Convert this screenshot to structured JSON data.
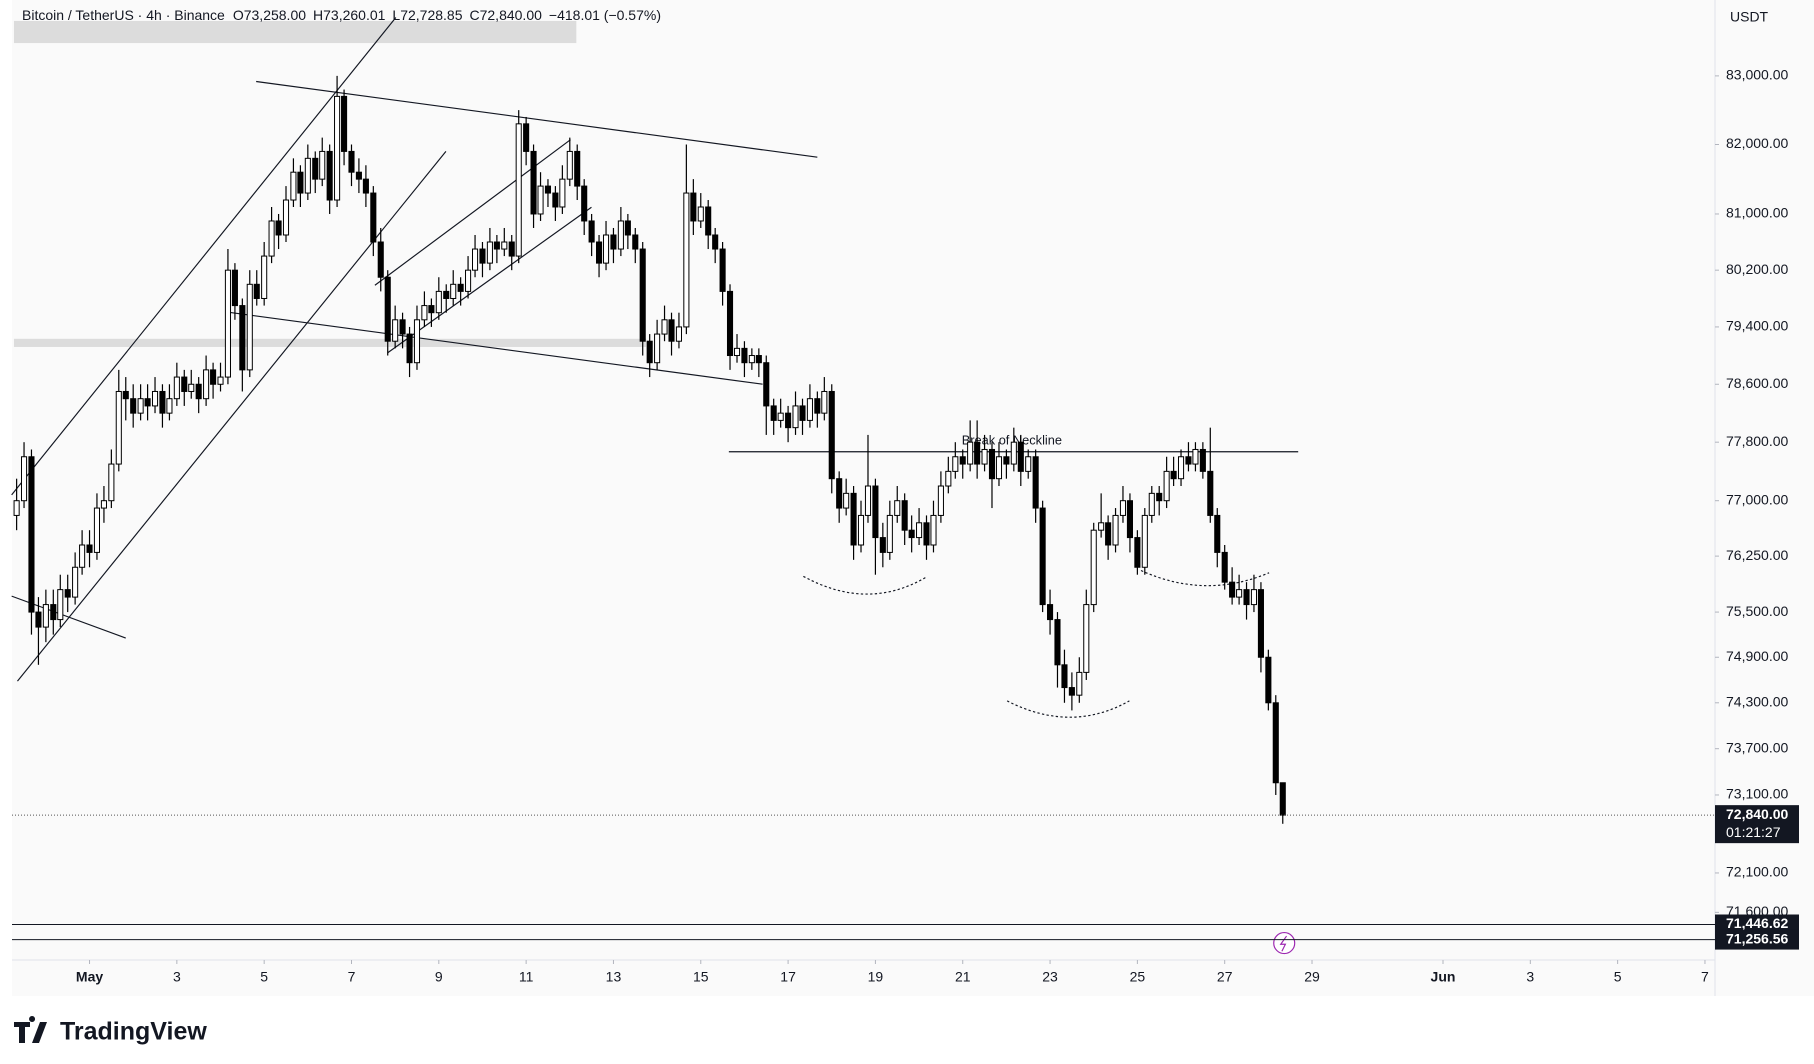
{
  "chart_data": {
    "type": "candlestick",
    "header": [
      "Bitcoin / TetherUS · 4h · Binance",
      "O73,258.00",
      "H73,260.01",
      "L72,728.85",
      "C72,840.00",
      "−418.01 (−0.57%)"
    ],
    "currency": "USDT",
    "log_scale": true,
    "grid": false,
    "up_color": "#ffffff",
    "down_color": "#000000",
    "wick_color": "#000000",
    "ylim": [
      71000,
      84120
    ],
    "yticks": [
      {
        "value": 83000,
        "label": "83,000.00"
      },
      {
        "value": 82000,
        "label": "82,000.00"
      },
      {
        "value": 81000,
        "label": "81,000.00"
      },
      {
        "value": 80200,
        "label": "80,200.00"
      },
      {
        "value": 79400,
        "label": "79,400.00"
      },
      {
        "value": 78600,
        "label": "78,600.00"
      },
      {
        "value": 77800,
        "label": "77,800.00"
      },
      {
        "value": 77000,
        "label": "77,000.00"
      },
      {
        "value": 76250,
        "label": "76,250.00"
      },
      {
        "value": 75500,
        "label": "75,500.00"
      },
      {
        "value": 74900,
        "label": "74,900.00"
      },
      {
        "value": 74300,
        "label": "74,300.00"
      },
      {
        "value": 73700,
        "label": "73,700.00"
      },
      {
        "value": 73100,
        "label": "73,100.00"
      },
      {
        "value": 72100,
        "label": "72,100.00"
      },
      {
        "value": 71600,
        "label": "71,600.00"
      }
    ],
    "xlim": [
      -0.73,
      38.23
    ],
    "xticks": [
      {
        "value": 1,
        "label": "May"
      },
      3,
      5,
      7,
      9,
      11,
      13,
      15,
      17,
      19,
      21,
      23,
      25,
      27,
      29,
      {
        "value": 32,
        "label": "Jun"
      },
      {
        "value": 34,
        "label": "3"
      },
      {
        "value": 36,
        "label": "5"
      },
      {
        "value": 38,
        "label": "7"
      }
    ],
    "price_lines": [
      {
        "value": 72840,
        "label": "72,840.00",
        "countdown": "01:21:27",
        "style": "dotted"
      },
      {
        "value": 71446.62,
        "label": "71,446.62",
        "style": "solid"
      },
      {
        "value": 71256.56,
        "label": "71,256.56",
        "style": "solid"
      }
    ],
    "annotations": [
      "Break of Neckline"
    ],
    "branding": "TradingView",
    "x": [
      -0.67,
      -0.5,
      -0.33,
      -0.17,
      0,
      0.17,
      0.33,
      0.5,
      0.67,
      0.83,
      1,
      1.17,
      1.33,
      1.5,
      1.67,
      1.83,
      2,
      2.17,
      2.33,
      2.5,
      2.67,
      2.83,
      3,
      3.17,
      3.33,
      3.5,
      3.67,
      3.83,
      4,
      4.17,
      4.33,
      4.5,
      4.67,
      4.83,
      5,
      5.17,
      5.33,
      5.5,
      5.67,
      5.83,
      6,
      6.17,
      6.33,
      6.5,
      6.67,
      6.83,
      7,
      7.17,
      7.33,
      7.5,
      7.67,
      7.83,
      8,
      8.17,
      8.33,
      8.5,
      8.67,
      8.83,
      9,
      9.17,
      9.33,
      9.5,
      9.67,
      9.83,
      10,
      10.17,
      10.33,
      10.5,
      10.67,
      10.83,
      11,
      11.17,
      11.33,
      11.5,
      11.67,
      11.83,
      12,
      12.17,
      12.33,
      12.5,
      12.67,
      12.83,
      13,
      13.17,
      13.33,
      13.5,
      13.67,
      13.83,
      14,
      14.17,
      14.33,
      14.5,
      14.67,
      14.83,
      15,
      15.17,
      15.33,
      15.5,
      15.67,
      15.83,
      16,
      16.17,
      16.33,
      16.5,
      16.67,
      16.83,
      17,
      17.17,
      17.33,
      17.5,
      17.67,
      17.83,
      18,
      18.17,
      18.33,
      18.5,
      18.67,
      18.83,
      19,
      19.17,
      19.33,
      19.5,
      19.67,
      19.83,
      20,
      20.17,
      20.33,
      20.5,
      20.67,
      20.83,
      21,
      21.17,
      21.33,
      21.5,
      21.67,
      21.83,
      22,
      22.17,
      22.33,
      22.5,
      22.67,
      22.83,
      23,
      23.17,
      23.33,
      23.5,
      23.67,
      23.83,
      24,
      24.17,
      24.33,
      24.5,
      24.67,
      24.83,
      25,
      25.17,
      25.33,
      25.5,
      25.67,
      25.83,
      26,
      26.17,
      26.33,
      26.5,
      26.67,
      26.83,
      27,
      27.17,
      27.33,
      27.5,
      27.67,
      27.83,
      28,
      28.17,
      28.33
    ],
    "candles": [
      [
        76800,
        77300,
        76600,
        77000
      ],
      [
        77000,
        77800,
        76900,
        77600
      ],
      [
        77600,
        77700,
        75200,
        75500
      ],
      [
        75500,
        75700,
        74800,
        75300
      ],
      [
        75300,
        75800,
        75100,
        75600
      ],
      [
        75600,
        75800,
        75200,
        75400
      ],
      [
        75400,
        76000,
        75300,
        75800
      ],
      [
        75800,
        76000,
        75500,
        75700
      ],
      [
        75700,
        76300,
        75600,
        76100
      ],
      [
        76100,
        76600,
        76000,
        76400
      ],
      [
        76400,
        76600,
        76100,
        76300
      ],
      [
        76300,
        77100,
        76200,
        76900
      ],
      [
        76900,
        77200,
        76700,
        77000
      ],
      [
        77000,
        77700,
        76900,
        77500
      ],
      [
        77500,
        78800,
        77400,
        78500
      ],
      [
        78500,
        78700,
        78100,
        78400
      ],
      [
        78400,
        78600,
        78000,
        78200
      ],
      [
        78200,
        78600,
        78100,
        78400
      ],
      [
        78400,
        78600,
        78100,
        78300
      ],
      [
        78300,
        78700,
        78200,
        78500
      ],
      [
        78500,
        78600,
        78000,
        78200
      ],
      [
        78200,
        78600,
        78100,
        78400
      ],
      [
        78400,
        78900,
        78300,
        78700
      ],
      [
        78700,
        78800,
        78300,
        78500
      ],
      [
        78500,
        78800,
        78400,
        78600
      ],
      [
        78600,
        78700,
        78200,
        78400
      ],
      [
        78400,
        79000,
        78300,
        78800
      ],
      [
        78800,
        78900,
        78400,
        78600
      ],
      [
        78600,
        78900,
        78500,
        78700
      ],
      [
        78700,
        80500,
        78600,
        80200
      ],
      [
        80200,
        80300,
        79500,
        79700
      ],
      [
        79700,
        79800,
        78500,
        78800
      ],
      [
        78800,
        80200,
        78700,
        80000
      ],
      [
        80000,
        80200,
        79700,
        79800
      ],
      [
        79800,
        80600,
        79700,
        80400
      ],
      [
        80400,
        81100,
        80300,
        80900
      ],
      [
        80900,
        81000,
        80500,
        80700
      ],
      [
        80700,
        81400,
        80600,
        81200
      ],
      [
        81200,
        81800,
        81100,
        81600
      ],
      [
        81600,
        81700,
        81100,
        81300
      ],
      [
        81300,
        82000,
        81200,
        81800
      ],
      [
        81800,
        81900,
        81300,
        81500
      ],
      [
        81500,
        82100,
        81400,
        81900
      ],
      [
        81900,
        82000,
        81000,
        81200
      ],
      [
        81200,
        83000,
        81100,
        82700
      ],
      [
        82700,
        82800,
        81700,
        81900
      ],
      [
        81900,
        82000,
        81400,
        81600
      ],
      [
        81600,
        81800,
        81300,
        81500
      ],
      [
        81500,
        81700,
        81100,
        81300
      ],
      [
        81300,
        81400,
        80400,
        80600
      ],
      [
        80600,
        80800,
        79900,
        80100
      ],
      [
        80100,
        80200,
        79000,
        79200
      ],
      [
        79200,
        79700,
        79100,
        79500
      ],
      [
        79500,
        79600,
        79100,
        79300
      ],
      [
        79300,
        79400,
        78700,
        78900
      ],
      [
        78900,
        79700,
        78800,
        79500
      ],
      [
        79500,
        79900,
        79400,
        79700
      ],
      [
        79700,
        79800,
        79400,
        79600
      ],
      [
        79600,
        80100,
        79500,
        79900
      ],
      [
        79900,
        80000,
        79600,
        79800
      ],
      [
        79800,
        80200,
        79700,
        80000
      ],
      [
        80000,
        80100,
        79700,
        79900
      ],
      [
        79900,
        80400,
        79800,
        80200
      ],
      [
        80200,
        80700,
        80100,
        80500
      ],
      [
        80500,
        80600,
        80100,
        80300
      ],
      [
        80300,
        80800,
        80200,
        80600
      ],
      [
        80600,
        80700,
        80300,
        80500
      ],
      [
        80500,
        80800,
        80400,
        80600
      ],
      [
        80600,
        80700,
        80200,
        80400
      ],
      [
        80400,
        82500,
        80300,
        82300
      ],
      [
        82300,
        82400,
        81700,
        81900
      ],
      [
        81900,
        82000,
        80800,
        81000
      ],
      [
        81000,
        81600,
        80900,
        81400
      ],
      [
        81400,
        81500,
        81100,
        81300
      ],
      [
        81300,
        81400,
        80900,
        81100
      ],
      [
        81100,
        81700,
        81000,
        81500
      ],
      [
        81500,
        82100,
        81400,
        81900
      ],
      [
        81900,
        82000,
        81200,
        81400
      ],
      [
        81400,
        81500,
        80700,
        80900
      ],
      [
        80900,
        81000,
        80400,
        80600
      ],
      [
        80600,
        80700,
        80100,
        80300
      ],
      [
        80300,
        80900,
        80200,
        80700
      ],
      [
        80700,
        80800,
        80300,
        80500
      ],
      [
        80500,
        81100,
        80400,
        80900
      ],
      [
        80900,
        81000,
        80500,
        80700
      ],
      [
        80700,
        80800,
        80300,
        80500
      ],
      [
        80500,
        80600,
        79000,
        79200
      ],
      [
        79200,
        79300,
        78700,
        78900
      ],
      [
        78900,
        79500,
        78800,
        79300
      ],
      [
        79300,
        79700,
        79200,
        79500
      ],
      [
        79500,
        79600,
        79000,
        79200
      ],
      [
        79200,
        79600,
        79100,
        79400
      ],
      [
        79400,
        82000,
        79300,
        81300
      ],
      [
        81300,
        81500,
        80700,
        80900
      ],
      [
        80900,
        81300,
        80800,
        81100
      ],
      [
        81100,
        81200,
        80500,
        80700
      ],
      [
        80700,
        80800,
        80300,
        80500
      ],
      [
        80500,
        80600,
        79700,
        79900
      ],
      [
        79900,
        80000,
        78800,
        79000
      ],
      [
        79000,
        79300,
        78900,
        79100
      ],
      [
        79100,
        79200,
        78700,
        78900
      ],
      [
        78900,
        79100,
        78800,
        79000
      ],
      [
        79000,
        79100,
        78700,
        78900
      ],
      [
        78900,
        79000,
        77900,
        78300
      ],
      [
        78300,
        78400,
        77900,
        78100
      ],
      [
        78100,
        78400,
        78000,
        78200
      ],
      [
        78200,
        78300,
        77800,
        78000
      ],
      [
        78000,
        78500,
        77900,
        78300
      ],
      [
        78300,
        78400,
        77900,
        78100
      ],
      [
        78100,
        78600,
        78000,
        78400
      ],
      [
        78400,
        78500,
        78000,
        78200
      ],
      [
        78200,
        78700,
        78100,
        78500
      ],
      [
        78500,
        78600,
        77100,
        77300
      ],
      [
        77300,
        77400,
        76700,
        76900
      ],
      [
        76900,
        77300,
        76800,
        77100
      ],
      [
        77100,
        77200,
        76200,
        76400
      ],
      [
        76400,
        77000,
        76300,
        76800
      ],
      [
        76800,
        77900,
        76700,
        77200
      ],
      [
        77200,
        77300,
        76000,
        76500
      ],
      [
        76500,
        76700,
        76100,
        76300
      ],
      [
        76300,
        77000,
        76200,
        76800
      ],
      [
        76800,
        77200,
        76700,
        77000
      ],
      [
        77000,
        77100,
        76400,
        76600
      ],
      [
        76600,
        76800,
        76300,
        76500
      ],
      [
        76500,
        76900,
        76400,
        76700
      ],
      [
        76700,
        76800,
        76200,
        76400
      ],
      [
        76400,
        77000,
        76300,
        76800
      ],
      [
        76800,
        77400,
        76700,
        77200
      ],
      [
        77200,
        77600,
        77100,
        77400
      ],
      [
        77400,
        77800,
        77300,
        77600
      ],
      [
        77600,
        77700,
        77300,
        77500
      ],
      [
        77500,
        78100,
        77400,
        77800
      ],
      [
        77800,
        78100,
        77300,
        77500
      ],
      [
        77500,
        77900,
        77400,
        77700
      ],
      [
        77700,
        77800,
        76900,
        77300
      ],
      [
        77300,
        77800,
        77200,
        77600
      ],
      [
        77600,
        77700,
        77300,
        77500
      ],
      [
        77500,
        78000,
        77400,
        77800
      ],
      [
        77800,
        77900,
        77200,
        77400
      ],
      [
        77400,
        77700,
        77300,
        77600
      ],
      [
        77600,
        77700,
        76700,
        76900
      ],
      [
        76900,
        77000,
        75500,
        75600
      ],
      [
        75600,
        75800,
        75200,
        75400
      ],
      [
        75400,
        75500,
        74500,
        74800
      ],
      [
        74800,
        75000,
        74300,
        74500
      ],
      [
        74500,
        74700,
        74200,
        74400
      ],
      [
        74400,
        74900,
        74300,
        74700
      ],
      [
        74700,
        75800,
        74600,
        75600
      ],
      [
        75600,
        76700,
        75500,
        76600
      ],
      [
        76600,
        77100,
        76500,
        76700
      ],
      [
        76700,
        76800,
        76200,
        76400
      ],
      [
        76400,
        76900,
        76300,
        76800
      ],
      [
        76800,
        77200,
        76700,
        77000
      ],
      [
        77000,
        77100,
        76300,
        76500
      ],
      [
        76500,
        76600,
        76000,
        76100
      ],
      [
        76100,
        76900,
        76000,
        76800
      ],
      [
        76800,
        77200,
        76700,
        77100
      ],
      [
        77100,
        77200,
        76800,
        77000
      ],
      [
        77000,
        77600,
        76900,
        77400
      ],
      [
        77400,
        77600,
        77200,
        77300
      ],
      [
        77300,
        77700,
        77200,
        77600
      ],
      [
        77600,
        77800,
        77400,
        77500
      ],
      [
        77500,
        77800,
        77400,
        77700
      ],
      [
        77700,
        77800,
        77300,
        77400
      ],
      [
        77400,
        78000,
        76700,
        76800
      ],
      [
        76800,
        76900,
        76100,
        76300
      ],
      [
        76300,
        76400,
        75800,
        75900
      ],
      [
        75900,
        76100,
        75600,
        75700
      ],
      [
        75700,
        76000,
        75600,
        75800
      ],
      [
        75800,
        75900,
        75400,
        75600
      ],
      [
        75600,
        76000,
        75500,
        75800
      ],
      [
        75800,
        75900,
        74700,
        74900
      ],
      [
        74900,
        75000,
        74200,
        74300
      ],
      [
        74300,
        74400,
        73100,
        73258
      ],
      [
        73258,
        73260.01,
        72728.85,
        72840
      ]
    ]
  }
}
